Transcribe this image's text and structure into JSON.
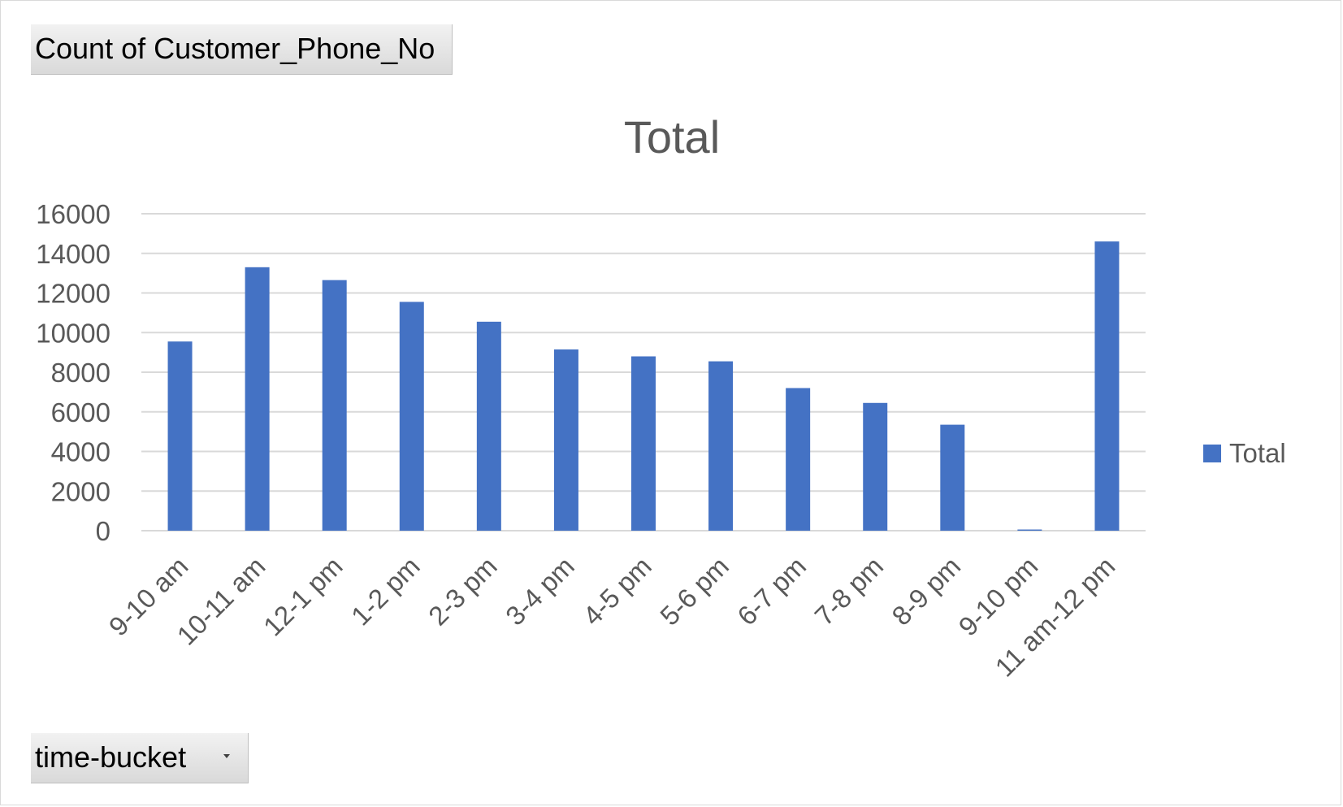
{
  "field_buttons": {
    "value_field": "Count of Customer_Phone_No",
    "axis_field": "time-bucket"
  },
  "chart_data": {
    "type": "bar",
    "title": "Total",
    "xlabel": "",
    "ylabel": "",
    "categories": [
      "9-10 am",
      "10-11 am",
      "12-1 pm",
      "1-2 pm",
      "2-3 pm",
      "3-4 pm",
      "4-5 pm",
      "5-6 pm",
      "6-7 pm",
      "7-8 pm",
      "8-9 pm",
      "9-10 pm",
      "11 am-12 pm"
    ],
    "series": [
      {
        "name": "Total",
        "color": "#4472c4",
        "values": [
          9550,
          13300,
          12650,
          11550,
          10550,
          9150,
          8800,
          8550,
          7200,
          6450,
          5350,
          60,
          14600
        ]
      }
    ],
    "ylim": [
      0,
      16000
    ],
    "yticks": [
      0,
      2000,
      4000,
      6000,
      8000,
      10000,
      12000,
      14000,
      16000
    ],
    "grid": true,
    "legend": "right",
    "colors": {
      "bar": "#4472c4",
      "grid": "#d9d9d9",
      "text": "#595959"
    }
  }
}
